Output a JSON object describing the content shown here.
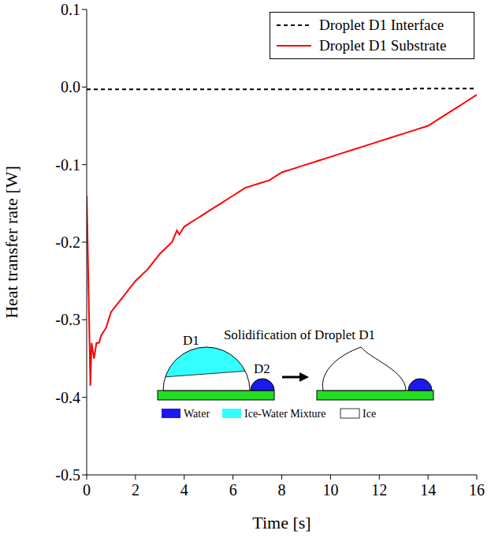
{
  "chart_data": {
    "type": "line",
    "xlabel": "Time [s]",
    "ylabel": "Heat transfer rate [W]",
    "x": [
      0,
      0.1,
      0.15,
      0.2,
      0.3,
      0.4,
      0.5,
      0.6,
      0.8,
      1,
      1.5,
      2,
      2.5,
      3,
      3.5,
      3.7,
      3.8,
      4,
      4.5,
      5,
      5.5,
      6,
      6.5,
      7,
      7.5,
      8,
      8.5,
      9,
      9.5,
      10,
      10.5,
      11,
      11.5,
      12,
      12.5,
      13,
      13.5,
      14,
      14.5,
      15,
      15.5,
      16
    ],
    "series": [
      {
        "name": "Droplet D1 Interface",
        "color": "#000000",
        "line_style": "dashed",
        "values": [
          -0.003,
          -0.003,
          -0.003,
          -0.003,
          -0.003,
          -0.003,
          -0.003,
          -0.003,
          -0.003,
          -0.003,
          -0.003,
          -0.003,
          -0.003,
          -0.003,
          -0.003,
          -0.003,
          -0.003,
          -0.003,
          -0.003,
          -0.003,
          -0.003,
          -0.003,
          -0.003,
          -0.003,
          -0.003,
          -0.003,
          -0.003,
          -0.003,
          -0.003,
          -0.003,
          -0.003,
          -0.003,
          -0.003,
          -0.003,
          -0.003,
          -0.003,
          -0.002,
          -0.002,
          -0.002,
          -0.002,
          -0.002,
          -0.002
        ]
      },
      {
        "name": "Droplet D1 Substrate",
        "color": "#ff0000",
        "line_style": "solid",
        "values": [
          -0.14,
          -0.3,
          -0.385,
          -0.33,
          -0.35,
          -0.33,
          -0.33,
          -0.32,
          -0.31,
          -0.29,
          -0.27,
          -0.25,
          -0.235,
          -0.215,
          -0.2,
          -0.185,
          -0.19,
          -0.18,
          -0.17,
          -0.16,
          -0.15,
          -0.14,
          -0.13,
          -0.125,
          -0.12,
          -0.11,
          -0.105,
          -0.1,
          -0.095,
          -0.09,
          -0.085,
          -0.08,
          -0.075,
          -0.07,
          -0.065,
          -0.06,
          -0.055,
          -0.05,
          -0.04,
          -0.03,
          -0.02,
          -0.01
        ]
      }
    ],
    "xlim": [
      0,
      16
    ],
    "ylim": [
      -0.5,
      0.1
    ],
    "xticks": [
      0,
      2,
      4,
      6,
      8,
      10,
      12,
      14,
      16
    ],
    "yticks": [
      -0.5,
      -0.4,
      -0.3,
      -0.2,
      -0.1,
      {
        "value": 0,
        "label": "0.0"
      },
      0.1
    ],
    "legend": "upper right",
    "grid": false,
    "annotations": [
      "Solidification of Droplet D1",
      "D1",
      "D2",
      "Water",
      "Ice-Water Mixture",
      "Ice"
    ]
  }
}
